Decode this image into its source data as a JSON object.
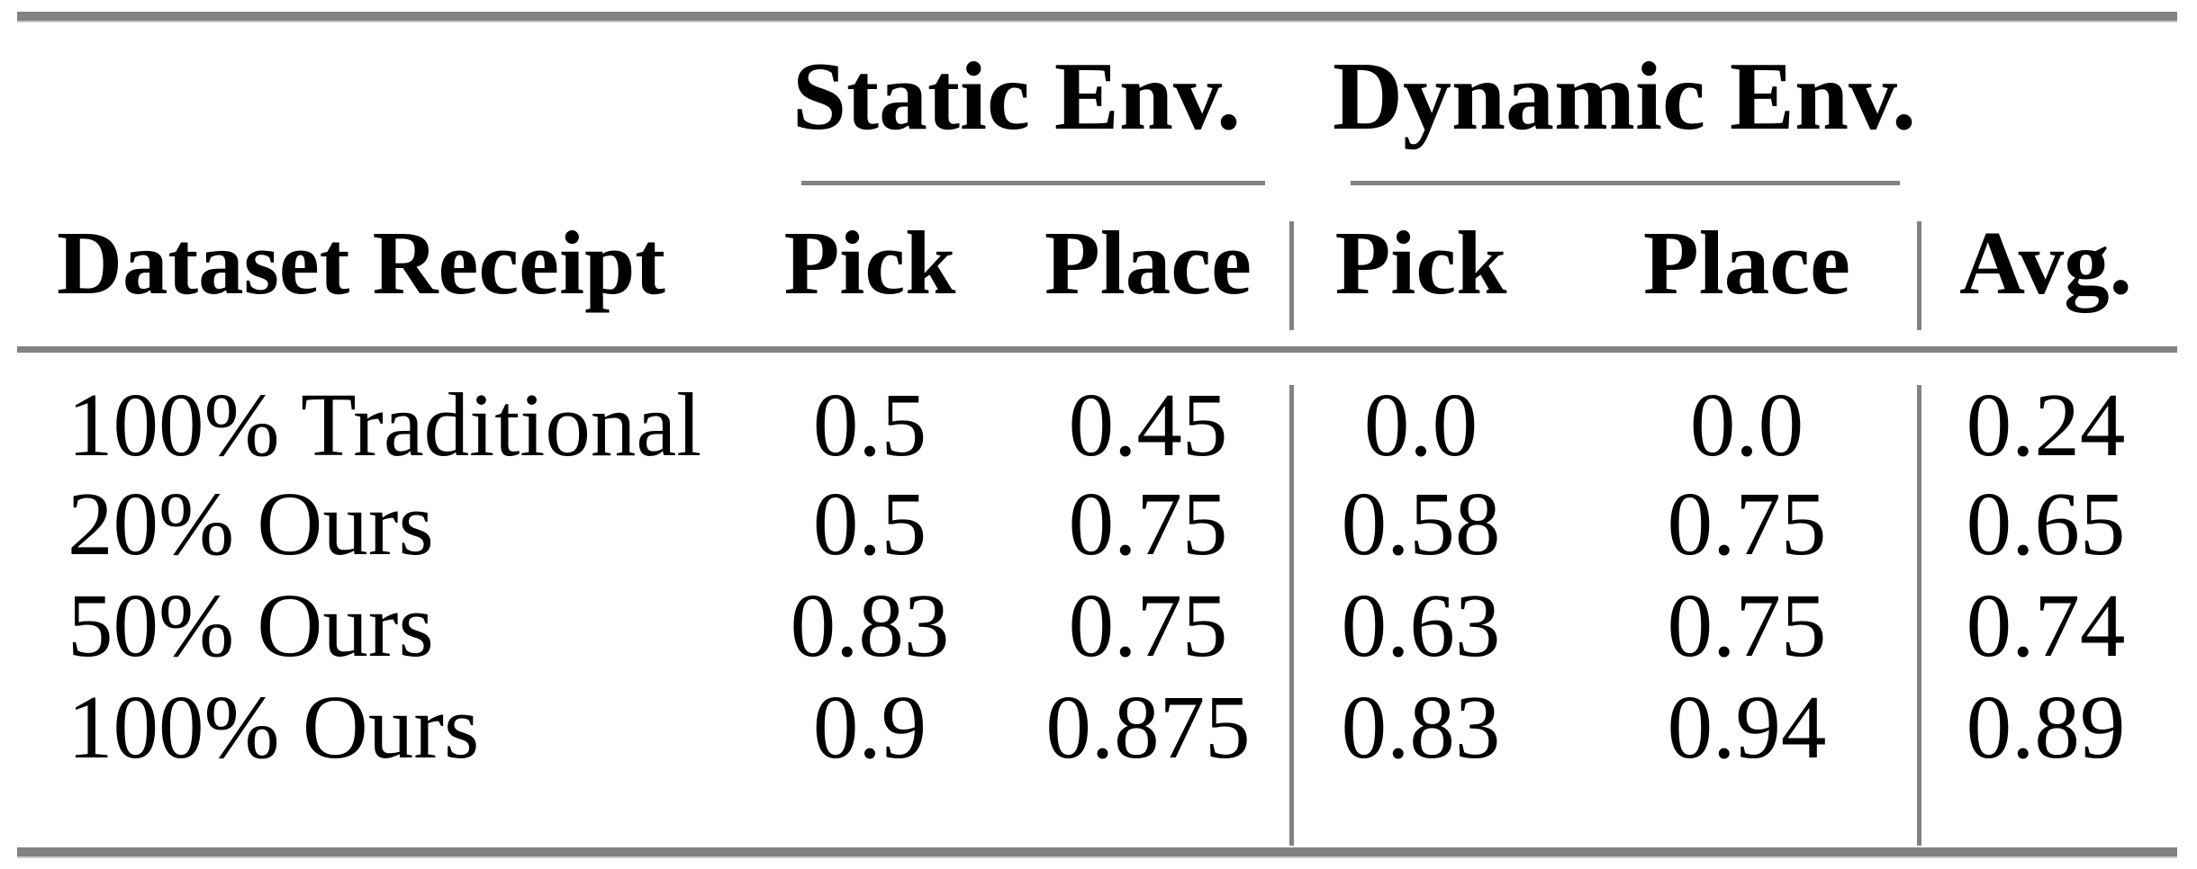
{
  "colors": {
    "rule": "#828282",
    "text": "#000000",
    "background": "#ffffff"
  },
  "table": {
    "column_groups": [
      {
        "label": "Static Env."
      },
      {
        "label": "Dynamic Env."
      }
    ],
    "columns": [
      "Dataset Receipt",
      "Pick",
      "Place",
      "Pick",
      "Place",
      "Avg."
    ],
    "rows": [
      {
        "label": "100% Traditional",
        "values": [
          "0.5",
          "0.45",
          "0.0",
          "0.0",
          "0.24"
        ]
      },
      {
        "label": "20% Ours",
        "values": [
          "0.5",
          "0.75",
          "0.58",
          "0.75",
          "0.65"
        ]
      },
      {
        "label": "50% Ours",
        "values": [
          "0.83",
          "0.75",
          "0.63",
          "0.75",
          "0.74"
        ]
      },
      {
        "label": "100% Ours",
        "values": [
          "0.9",
          "0.875",
          "0.83",
          "0.94",
          "0.89"
        ]
      }
    ]
  },
  "chart_data": {
    "type": "table",
    "title": "",
    "column_groups": [
      "Static Env.",
      "Dynamic Env."
    ],
    "columns": [
      "Dataset Receipt",
      "Static Pick",
      "Static Place",
      "Dynamic Pick",
      "Dynamic Place",
      "Avg."
    ],
    "rows": [
      [
        "100% Traditional",
        0.5,
        0.45,
        0.0,
        0.0,
        0.24
      ],
      [
        "20% Ours",
        0.5,
        0.75,
        0.58,
        0.75,
        0.65
      ],
      [
        "50% Ours",
        0.83,
        0.75,
        0.63,
        0.75,
        0.74
      ],
      [
        "100% Ours",
        0.9,
        0.875,
        0.83,
        0.94,
        0.89
      ]
    ]
  }
}
